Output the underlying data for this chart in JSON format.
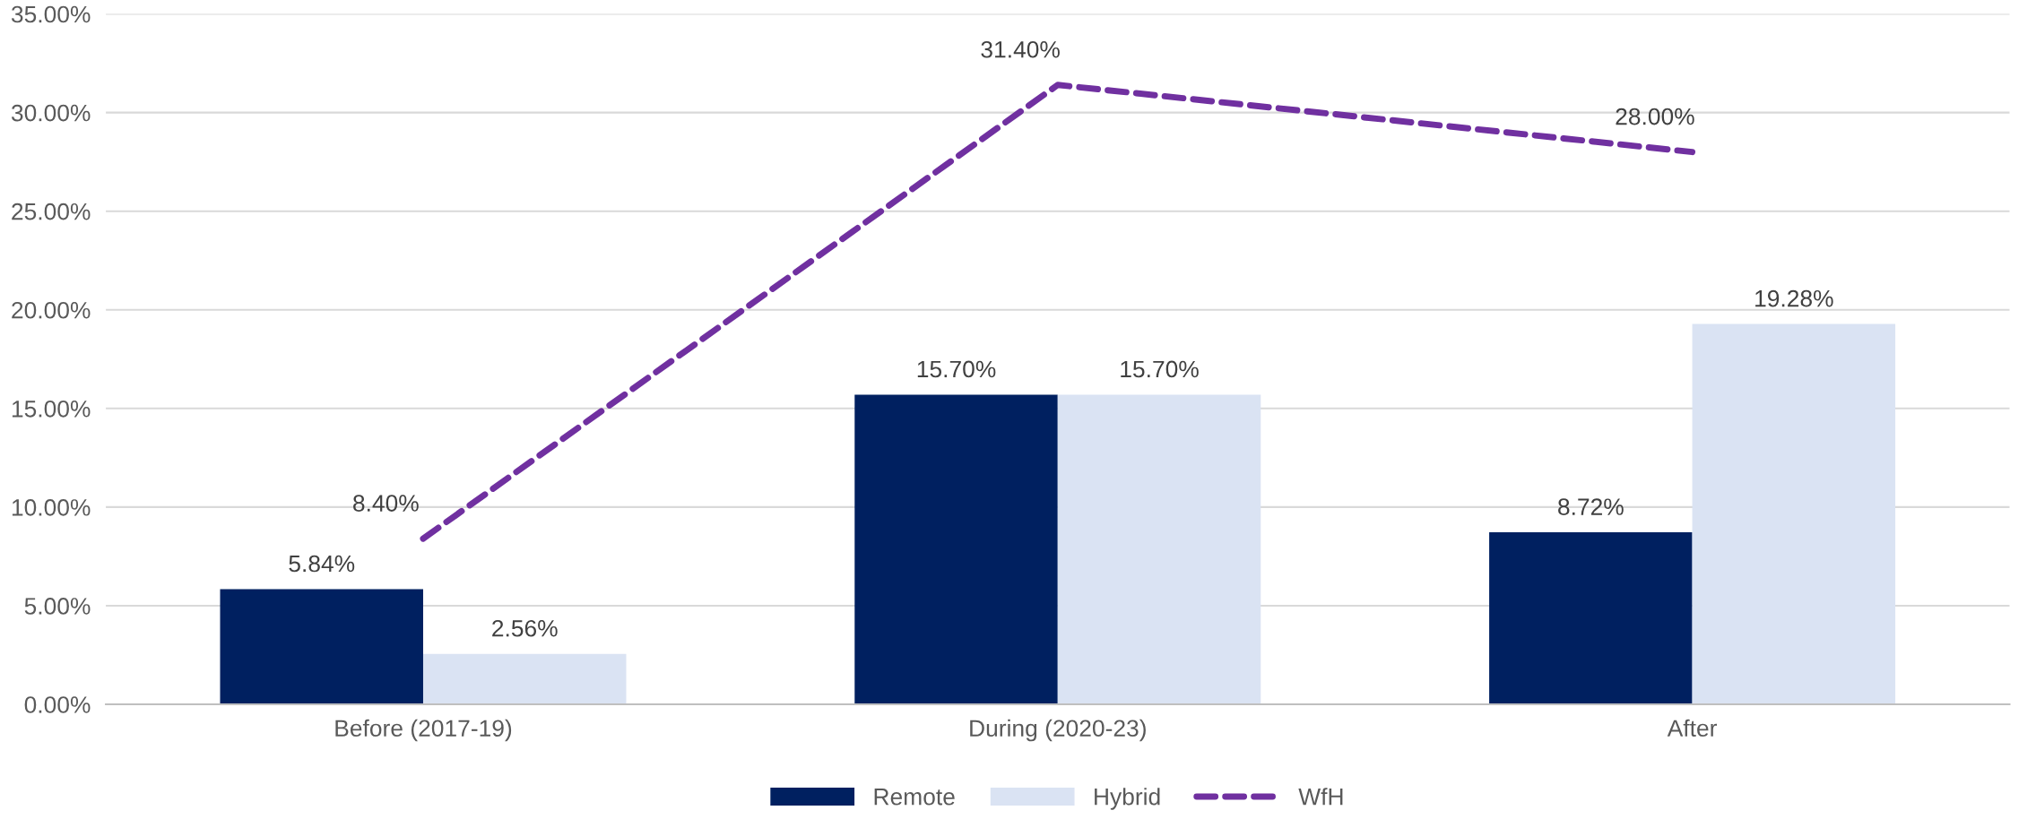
{
  "chart_data": {
    "type": "bar",
    "categories": [
      "Before (2017-19)",
      "During (2020-23)",
      "After"
    ],
    "series": [
      {
        "name": "Remote",
        "color": "#002060",
        "values": [
          5.84,
          15.7,
          8.72
        ],
        "value_labels": [
          "5.84%",
          "15.70%",
          "8.72%"
        ]
      },
      {
        "name": "Hybrid",
        "color": "#dae3f3",
        "values": [
          2.56,
          15.7,
          19.28
        ],
        "value_labels": [
          "2.56%",
          "15.70%",
          "19.28%"
        ]
      },
      {
        "name": "WfH",
        "type": "line",
        "color": "#7030a0",
        "line_style": "dashed",
        "marker": "none",
        "values": [
          8.4,
          31.4,
          28.0
        ],
        "value_labels": [
          "8.40%",
          "31.40%",
          "28.00%"
        ]
      }
    ],
    "ylim": [
      0,
      35
    ],
    "yticks": [
      {
        "value": 0,
        "label": "0.00%"
      },
      {
        "value": 5,
        "label": "5.00%"
      },
      {
        "value": 10,
        "label": "10.00%"
      },
      {
        "value": 15,
        "label": "15.00%"
      },
      {
        "value": 20,
        "label": "20.00%"
      },
      {
        "value": 25,
        "label": "25.00%"
      },
      {
        "value": 30,
        "label": "30.00%"
      },
      {
        "value": 35,
        "label": "35.00%"
      }
    ],
    "grid": "y",
    "legend": "bottom"
  }
}
